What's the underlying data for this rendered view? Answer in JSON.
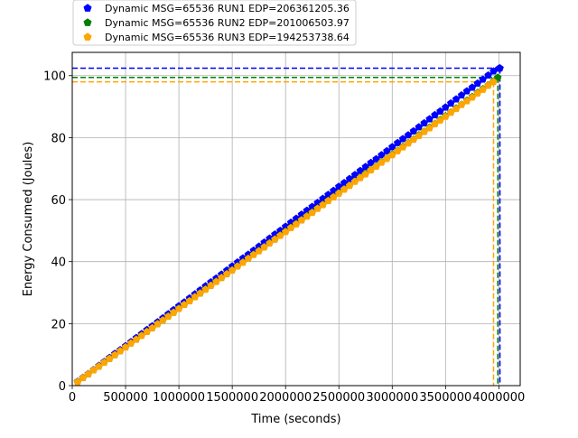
{
  "chart_data": {
    "type": "line",
    "xlabel": "Time (seconds)",
    "ylabel": "Energy Consumed (Joules)",
    "xlim": [
      0,
      4200000
    ],
    "ylim": [
      0,
      107.5
    ],
    "x_ticks": [
      0,
      500000,
      1000000,
      1500000,
      2000000,
      2500000,
      3000000,
      3500000,
      4000000
    ],
    "y_ticks": [
      0,
      20,
      40,
      60,
      80,
      100
    ],
    "grid": true,
    "legend_position": "top-left-outside",
    "marker": "pentagon",
    "series": [
      {
        "name": "Dynamic MSG=65536 RUN1 EDP=206361205.36",
        "color": "#0000ff",
        "x": [
          50000,
          100000,
          150000,
          200000,
          250000,
          300000,
          350000,
          400000,
          450000,
          500000,
          550000,
          600000,
          650000,
          700000,
          750000,
          800000,
          850000,
          900000,
          950000,
          1000000,
          1050000,
          1100000,
          1150000,
          1200000,
          1250000,
          1300000,
          1350000,
          1400000,
          1450000,
          1500000,
          1550000,
          1600000,
          1650000,
          1700000,
          1750000,
          1800000,
          1850000,
          1900000,
          1950000,
          2000000,
          2050000,
          2100000,
          2150000,
          2200000,
          2250000,
          2300000,
          2350000,
          2400000,
          2450000,
          2500000,
          2550000,
          2600000,
          2650000,
          2700000,
          2750000,
          2800000,
          2850000,
          2900000,
          2950000,
          3000000,
          3050000,
          3100000,
          3150000,
          3200000,
          3250000,
          3300000,
          3350000,
          3400000,
          3450000,
          3500000,
          3550000,
          3600000,
          3650000,
          3700000,
          3750000,
          3800000,
          3850000,
          3900000,
          3950000,
          4000000,
          4010000
        ],
        "y": [
          1.3,
          2.6,
          3.8,
          5.1,
          6.4,
          7.7,
          9.0,
          10.3,
          11.5,
          12.8,
          14.1,
          15.4,
          16.7,
          18.0,
          19.2,
          20.5,
          21.8,
          23.1,
          24.4,
          25.7,
          26.9,
          28.2,
          29.5,
          30.8,
          32.1,
          33.4,
          34.6,
          35.9,
          37.2,
          38.5,
          39.8,
          41.1,
          42.3,
          43.6,
          44.9,
          46.2,
          47.5,
          48.8,
          50.0,
          51.3,
          52.6,
          53.9,
          55.2,
          56.5,
          57.7,
          59.0,
          60.3,
          61.6,
          62.9,
          64.2,
          65.4,
          66.7,
          68.0,
          69.3,
          70.6,
          71.9,
          73.1,
          74.4,
          75.7,
          77.0,
          78.3,
          79.6,
          80.8,
          82.1,
          83.4,
          84.7,
          86.0,
          87.3,
          88.5,
          89.8,
          91.1,
          92.4,
          93.7,
          95.0,
          96.2,
          97.5,
          98.8,
          100.1,
          101.4,
          102.3,
          102.4
        ],
        "ref_x": 4010000,
        "ref_y": 102.4
      },
      {
        "name": "Dynamic MSG=65536 RUN2 EDP=201006503.97",
        "color": "#008000",
        "x": [
          50000,
          100000,
          150000,
          200000,
          250000,
          300000,
          350000,
          400000,
          450000,
          500000,
          550000,
          600000,
          650000,
          700000,
          750000,
          800000,
          850000,
          900000,
          950000,
          1000000,
          1050000,
          1100000,
          1150000,
          1200000,
          1250000,
          1300000,
          1350000,
          1400000,
          1450000,
          1500000,
          1550000,
          1600000,
          1650000,
          1700000,
          1750000,
          1800000,
          1850000,
          1900000,
          1950000,
          2000000,
          2050000,
          2100000,
          2150000,
          2200000,
          2250000,
          2300000,
          2350000,
          2400000,
          2450000,
          2500000,
          2550000,
          2600000,
          2650000,
          2700000,
          2750000,
          2800000,
          2850000,
          2900000,
          2950000,
          3000000,
          3050000,
          3100000,
          3150000,
          3200000,
          3250000,
          3300000,
          3350000,
          3400000,
          3450000,
          3500000,
          3550000,
          3600000,
          3650000,
          3700000,
          3750000,
          3800000,
          3850000,
          3900000,
          3950000,
          3990000
        ],
        "y": [
          1.2,
          2.5,
          3.7,
          5.0,
          6.2,
          7.5,
          8.7,
          9.9,
          11.2,
          12.4,
          13.7,
          14.9,
          16.2,
          17.4,
          18.6,
          19.9,
          21.1,
          22.4,
          23.6,
          24.9,
          26.1,
          27.3,
          28.6,
          29.8,
          31.1,
          32.3,
          33.6,
          34.8,
          36.0,
          37.3,
          38.5,
          39.8,
          41.0,
          42.3,
          43.5,
          44.7,
          46.0,
          47.2,
          48.5,
          49.7,
          51.0,
          52.2,
          53.4,
          54.7,
          55.9,
          57.2,
          58.4,
          59.7,
          60.9,
          62.1,
          63.4,
          64.6,
          65.9,
          67.1,
          68.4,
          69.6,
          70.8,
          72.1,
          73.3,
          74.6,
          75.8,
          77.1,
          78.3,
          79.5,
          80.8,
          82.0,
          83.3,
          84.5,
          85.8,
          87.0,
          88.2,
          89.5,
          90.7,
          92.0,
          93.2,
          94.5,
          95.7,
          96.9,
          98.2,
          99.4
        ],
        "ref_x": 3990000,
        "ref_y": 99.4
      },
      {
        "name": "Dynamic MSG=65536 RUN3 EDP=194253738.64",
        "color": "#ffa500",
        "x": [
          50000,
          100000,
          150000,
          200000,
          250000,
          300000,
          350000,
          400000,
          450000,
          500000,
          550000,
          600000,
          650000,
          700000,
          750000,
          800000,
          850000,
          900000,
          950000,
          1000000,
          1050000,
          1100000,
          1150000,
          1200000,
          1250000,
          1300000,
          1350000,
          1400000,
          1450000,
          1500000,
          1550000,
          1600000,
          1650000,
          1700000,
          1750000,
          1800000,
          1850000,
          1900000,
          1950000,
          2000000,
          2050000,
          2100000,
          2150000,
          2200000,
          2250000,
          2300000,
          2350000,
          2400000,
          2450000,
          2500000,
          2550000,
          2600000,
          2650000,
          2700000,
          2750000,
          2800000,
          2850000,
          2900000,
          2950000,
          3000000,
          3050000,
          3100000,
          3150000,
          3200000,
          3250000,
          3300000,
          3350000,
          3400000,
          3450000,
          3500000,
          3550000,
          3600000,
          3650000,
          3700000,
          3750000,
          3800000,
          3850000,
          3900000,
          3950000
        ],
        "y": [
          1.2,
          2.5,
          3.7,
          5.0,
          6.2,
          7.5,
          8.7,
          9.9,
          11.2,
          12.4,
          13.7,
          14.9,
          16.1,
          17.4,
          18.6,
          19.9,
          21.1,
          22.3,
          23.6,
          24.8,
          26.1,
          27.3,
          28.6,
          29.8,
          31.0,
          32.3,
          33.5,
          34.8,
          36.0,
          37.2,
          38.5,
          39.7,
          41.0,
          42.2,
          43.4,
          44.7,
          45.9,
          47.2,
          48.4,
          49.6,
          50.9,
          52.1,
          53.4,
          54.6,
          55.8,
          57.1,
          58.3,
          59.6,
          60.8,
          62.0,
          63.3,
          64.5,
          65.8,
          67.0,
          68.2,
          69.5,
          70.7,
          72.0,
          73.2,
          74.4,
          75.7,
          76.9,
          78.2,
          79.4,
          80.6,
          81.9,
          83.1,
          84.4,
          85.6,
          86.8,
          88.1,
          89.3,
          90.6,
          91.8,
          93.0,
          94.3,
          95.5,
          96.8,
          98.0
        ],
        "ref_x": 3950000,
        "ref_y": 98.0
      }
    ]
  }
}
